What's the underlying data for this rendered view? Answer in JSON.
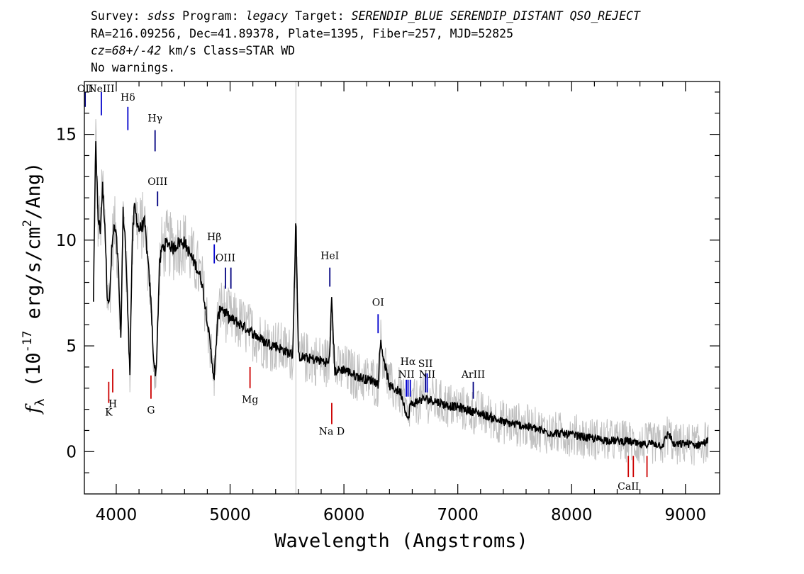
{
  "header": {
    "survey_label": "Survey:",
    "survey_value": "sdss",
    "program_label": "Program:",
    "program_value": "legacy",
    "target_label": "Target:",
    "target_value": "SERENDIP_BLUE SERENDIP_DISTANT QSO_REJECT",
    "line2": "RA=216.09256, Dec=41.89378, Plate=1395, Fiber=257, MJD=52825",
    "cz_value": "cz=68+/-42",
    "cz_rest": " km/s Class=STAR WD",
    "line4": "No warnings."
  },
  "chart_data": {
    "type": "line",
    "xlabel": "Wavelength (Angstroms)",
    "ylabel": "f_λ (10^-17 erg/s/cm²/Ang)",
    "xlim": [
      3720,
      9300
    ],
    "ylim": [
      -2,
      17.5
    ],
    "x_ticks": [
      "4000",
      "5000",
      "6000",
      "7000",
      "8000",
      "9000"
    ],
    "y_ticks": [
      "0",
      "5",
      "10",
      "15"
    ],
    "series": [
      {
        "color": "#000000",
        "x": [
          3800,
          3820,
          3840,
          3860,
          3880,
          3900,
          3920,
          3940,
          3960,
          3980,
          4000,
          4020,
          4040,
          4060,
          4080,
          4100,
          4120,
          4140,
          4160,
          4180,
          4200,
          4250,
          4300,
          4330,
          4350,
          4380,
          4400,
          4450,
          4500,
          4550,
          4600,
          4650,
          4700,
          4750,
          4800,
          4830,
          4860,
          4890,
          4920,
          4950,
          5000,
          5100,
          5200,
          5300,
          5400,
          5500,
          5550,
          5578,
          5600,
          5700,
          5800,
          5870,
          5893,
          5920,
          6000,
          6100,
          6200,
          6250,
          6300,
          6320,
          6400,
          6500,
          6540,
          6563,
          6580,
          6620,
          6700,
          6800,
          6900,
          7000,
          7200,
          7400,
          7600,
          7800,
          8000,
          8200,
          8400,
          8500,
          8600,
          8700,
          8800,
          8850,
          8900,
          9000,
          9100,
          9200
        ],
        "y": [
          7.2,
          14.8,
          11.0,
          10.5,
          12.5,
          10.8,
          7.5,
          7.0,
          9.5,
          10.6,
          10.2,
          8.5,
          5.2,
          11.3,
          10.0,
          6.8,
          3.8,
          9.8,
          11.6,
          11.0,
          10.5,
          10.8,
          7.5,
          4.2,
          3.6,
          8.8,
          9.6,
          9.9,
          9.6,
          9.9,
          9.9,
          9.3,
          8.8,
          8.1,
          6.2,
          4.8,
          3.4,
          6.2,
          6.9,
          6.6,
          6.3,
          6.0,
          5.6,
          5.2,
          5.0,
          4.7,
          4.6,
          11.0,
          4.5,
          4.4,
          4.3,
          4.2,
          7.2,
          3.8,
          3.9,
          3.6,
          3.4,
          3.4,
          3.2,
          5.2,
          3.1,
          2.8,
          2.0,
          1.4,
          2.2,
          2.3,
          2.5,
          2.4,
          2.2,
          2.1,
          1.8,
          1.4,
          1.2,
          0.9,
          0.8,
          0.6,
          0.5,
          0.5,
          0.3,
          0.4,
          0.3,
          0.9,
          0.3,
          0.4,
          0.3,
          0.5
        ]
      }
    ],
    "noise_color": "#bfbfbf",
    "sky_line_x": 5578,
    "sky_line_color": "#bfbfbf",
    "emission_lines": [
      {
        "label": "OII",
        "x": 3727,
        "y": 17.0,
        "y1": 16.3,
        "y2": 17.0,
        "color": "#000080"
      },
      {
        "label": "NeIII",
        "x": 3869,
        "y": 17.0,
        "y1": 15.9,
        "y2": 17.0,
        "color": "#0000cc"
      },
      {
        "label": "Hδ",
        "x": 4102,
        "y": 16.6,
        "y1": 15.2,
        "y2": 16.3,
        "color": "#0000cc"
      },
      {
        "label": "Hγ",
        "x": 4341,
        "y": 15.6,
        "y1": 14.2,
        "y2": 15.2,
        "color": "#000080"
      },
      {
        "label": "OIII",
        "x": 4363,
        "y": 12.6,
        "y1": 11.6,
        "y2": 12.3,
        "color": "#000080"
      },
      {
        "label": "Hβ",
        "x": 4861,
        "y": 10.0,
        "y1": 8.9,
        "y2": 9.8,
        "color": "#0000cc"
      },
      {
        "label": "OIII",
        "x": 4959,
        "y": 9.0,
        "y1": 7.7,
        "y2": 8.7,
        "color": "#000080"
      },
      {
        "label": "",
        "x": 5007,
        "y": 9.0,
        "y1": 7.7,
        "y2": 8.7,
        "color": "#000080"
      },
      {
        "label": "HeI",
        "x": 5876,
        "y": 9.1,
        "y1": 7.8,
        "y2": 8.7,
        "color": "#000080"
      },
      {
        "label": "OI",
        "x": 6300,
        "y": 6.9,
        "y1": 5.6,
        "y2": 6.5,
        "color": "#0000cc"
      },
      {
        "label": "NII",
        "x": 6548,
        "y": 3.5,
        "y1": 2.6,
        "y2": 3.4,
        "color": "#0000cc"
      },
      {
        "label": "Hα",
        "x": 6563,
        "y": 4.1,
        "y1": 2.6,
        "y2": 3.4,
        "color": "#0000cc"
      },
      {
        "label": "",
        "x": 6583,
        "y": 3.5,
        "y1": 2.6,
        "y2": 3.4,
        "color": "#0000cc"
      },
      {
        "label": "SII",
        "x": 6716,
        "y": 4.0,
        "y1": 2.8,
        "y2": 3.7,
        "color": "#000080"
      },
      {
        "label": "NII",
        "x": 6731,
        "y": 3.5,
        "y1": 2.8,
        "y2": 3.7,
        "color": "#0000cc"
      },
      {
        "label": "ArIII",
        "x": 7136,
        "y": 3.5,
        "y1": 2.5,
        "y2": 3.3,
        "color": "#000080"
      }
    ],
    "absorption_lines": [
      {
        "label": "K",
        "x": 3934,
        "y": 1.7,
        "y1": 2.3,
        "y2": 3.3,
        "color": "#cc0000"
      },
      {
        "label": "H",
        "x": 3969,
        "y": 2.1,
        "y1": 2.8,
        "y2": 3.9,
        "color": "#cc0000"
      },
      {
        "label": "G",
        "x": 4305,
        "y": 1.8,
        "y1": 2.5,
        "y2": 3.6,
        "color": "#cc0000"
      },
      {
        "label": "Mg",
        "x": 5175,
        "y": 2.3,
        "y1": 3.0,
        "y2": 4.0,
        "color": "#cc0000"
      },
      {
        "label": "Na D",
        "x": 5893,
        "y": 0.8,
        "y1": 1.3,
        "y2": 2.3,
        "color": "#cc0000"
      },
      {
        "label": "CaII",
        "x": 8498,
        "y": -1.8,
        "y1": -1.2,
        "y2": -0.2,
        "color": "#cc0000"
      },
      {
        "label": "",
        "x": 8542,
        "y": -1.8,
        "y1": -1.2,
        "y2": -0.2,
        "color": "#cc0000"
      },
      {
        "label": "",
        "x": 8662,
        "y": -1.8,
        "y1": -1.2,
        "y2": -0.2,
        "color": "#cc0000"
      }
    ]
  }
}
